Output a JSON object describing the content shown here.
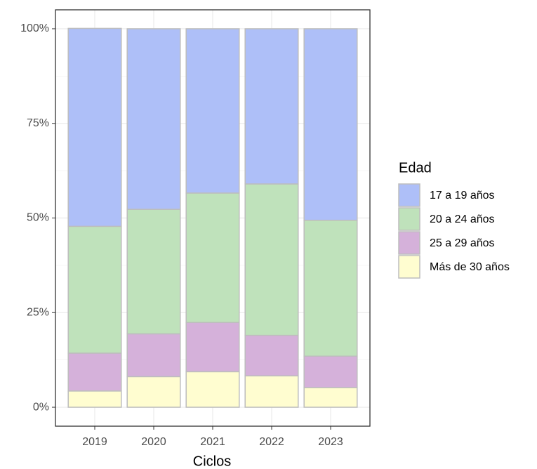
{
  "chart_data": {
    "type": "stacked_bar",
    "categories": [
      "2019",
      "2020",
      "2021",
      "2022",
      "2023"
    ],
    "series": [
      {
        "name": "17 a 19 años",
        "color": "#aebff8",
        "values": [
          52.3,
          47.7,
          43.4,
          41.0,
          50.6
        ]
      },
      {
        "name": "20 a 24 años",
        "color": "#bfe2bb",
        "values": [
          33.5,
          32.9,
          34.2,
          40.0,
          35.9
        ]
      },
      {
        "name": "25 a 29 años",
        "color": "#d5b1da",
        "values": [
          10.0,
          11.3,
          13.0,
          10.7,
          8.3
        ]
      },
      {
        "name": "Más de 30 años",
        "color": "#fffdd0",
        "values": [
          4.3,
          8.1,
          9.4,
          8.3,
          5.2
        ]
      }
    ],
    "ylim": [
      -5,
      105
    ],
    "yticks": [
      {
        "value": 0,
        "label": "0%"
      },
      {
        "value": 25,
        "label": "25%"
      },
      {
        "value": 50,
        "label": "50%"
      },
      {
        "value": 75,
        "label": "75%"
      },
      {
        "value": 100,
        "label": "100%"
      }
    ],
    "x_label": "Ciclos",
    "legend_title": "Edad",
    "legend_position": "right",
    "grid": true
  }
}
